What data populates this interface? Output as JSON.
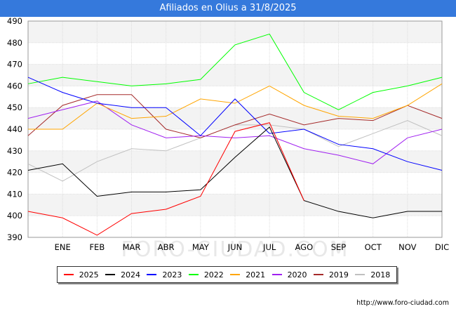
{
  "header": {
    "title": "Afiliados en Olius a 31/8/2025"
  },
  "footer": {
    "source": "http://www.foro-ciudad.com"
  },
  "watermark": "FORO-CIUDAD.COM",
  "chart_data": {
    "type": "line",
    "title": "Afiliados en Olius a 31/8/2025",
    "xlabel": "",
    "ylabel": "",
    "categories": [
      "",
      "ENE",
      "FEB",
      "MAR",
      "ABR",
      "MAY",
      "JUN",
      "JUL",
      "AGO",
      "SEP",
      "OCT",
      "NOV",
      "DIC"
    ],
    "ylim": [
      390,
      490
    ],
    "yticks": [
      390,
      400,
      410,
      420,
      430,
      440,
      450,
      460,
      470,
      480,
      490
    ],
    "grid": true,
    "legend_position": "bottom",
    "series": [
      {
        "name": "2025",
        "color": "#ff0000",
        "values": [
          402,
          399,
          391,
          401,
          403,
          409,
          439,
          443,
          407,
          null,
          null,
          null,
          null
        ]
      },
      {
        "name": "2024",
        "color": "#000000",
        "values": [
          421,
          424,
          409,
          411,
          411,
          412,
          427,
          441,
          407,
          402,
          399,
          402,
          402
        ]
      },
      {
        "name": "2023",
        "color": "#0000ff",
        "values": [
          464,
          457,
          452,
          450,
          450,
          437,
          454,
          438,
          440,
          433,
          431,
          425,
          421
        ]
      },
      {
        "name": "2022",
        "color": "#00ff00",
        "values": [
          461,
          464,
          462,
          460,
          461,
          463,
          479,
          484,
          457,
          449,
          457,
          460,
          464
        ]
      },
      {
        "name": "2021",
        "color": "#ffa500",
        "values": [
          440,
          440,
          452,
          445,
          446,
          454,
          452,
          460,
          451,
          446,
          445,
          451,
          461
        ]
      },
      {
        "name": "2020",
        "color": "#a020f0",
        "values": [
          445,
          449,
          453,
          442,
          436,
          437,
          436,
          437,
          431,
          428,
          424,
          436,
          440
        ]
      },
      {
        "name": "2019",
        "color": "#a52a2a",
        "values": [
          437,
          451,
          456,
          456,
          440,
          436,
          442,
          447,
          442,
          445,
          444,
          451,
          445
        ]
      },
      {
        "name": "2018",
        "color": "#c0c0c0",
        "values": [
          424,
          416,
          425,
          431,
          430,
          436,
          442,
          442,
          440,
          432,
          438,
          444,
          437
        ]
      }
    ]
  }
}
